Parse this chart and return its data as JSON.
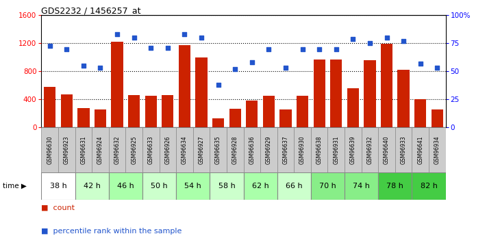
{
  "title": "GDS2232 / 1456257_at",
  "categories": [
    "GSM96630",
    "GSM96923",
    "GSM96631",
    "GSM96924",
    "GSM96632",
    "GSM96925",
    "GSM96633",
    "GSM96926",
    "GSM96634",
    "GSM96927",
    "GSM96635",
    "GSM96928",
    "GSM96636",
    "GSM96929",
    "GSM96637",
    "GSM96930",
    "GSM96638",
    "GSM96931",
    "GSM96639",
    "GSM96932",
    "GSM96640",
    "GSM96933",
    "GSM96641",
    "GSM96934"
  ],
  "bar_values": [
    580,
    470,
    280,
    260,
    1220,
    460,
    450,
    460,
    1170,
    1000,
    130,
    270,
    380,
    450,
    260,
    450,
    970,
    970,
    560,
    960,
    1190,
    820,
    400,
    255
  ],
  "scatter_values": [
    73,
    70,
    55,
    53,
    83,
    80,
    71,
    71,
    83,
    80,
    38,
    52,
    58,
    70,
    53,
    70,
    70,
    70,
    79,
    75,
    80,
    77,
    57,
    53
  ],
  "time_groups": [
    {
      "label": "38 h",
      "start": 0,
      "end": 2,
      "color": "#ffffff"
    },
    {
      "label": "42 h",
      "start": 2,
      "end": 4,
      "color": "#ccffcc"
    },
    {
      "label": "46 h",
      "start": 4,
      "end": 6,
      "color": "#aaffaa"
    },
    {
      "label": "50 h",
      "start": 6,
      "end": 8,
      "color": "#ccffcc"
    },
    {
      "label": "54 h",
      "start": 8,
      "end": 10,
      "color": "#aaffaa"
    },
    {
      "label": "58 h",
      "start": 10,
      "end": 12,
      "color": "#ccffcc"
    },
    {
      "label": "62 h",
      "start": 12,
      "end": 14,
      "color": "#aaffaa"
    },
    {
      "label": "66 h",
      "start": 14,
      "end": 16,
      "color": "#ccffcc"
    },
    {
      "label": "70 h",
      "start": 16,
      "end": 18,
      "color": "#88ee88"
    },
    {
      "label": "74 h",
      "start": 18,
      "end": 20,
      "color": "#88ee88"
    },
    {
      "label": "78 h",
      "start": 20,
      "end": 22,
      "color": "#44cc44"
    },
    {
      "label": "82 h",
      "start": 22,
      "end": 24,
      "color": "#44cc44"
    }
  ],
  "bar_color": "#cc2200",
  "scatter_color": "#2255cc",
  "ylim_left": [
    0,
    1600
  ],
  "ylim_right": [
    0,
    100
  ],
  "yticks_left": [
    0,
    400,
    800,
    1200,
    1600
  ],
  "ytick_labels_right": [
    "0",
    "25",
    "50",
    "75",
    "100%"
  ],
  "yticks_right": [
    0,
    25,
    50,
    75,
    100
  ],
  "plot_bg_color": "#ffffff",
  "grid_color": "#000000",
  "label_bg_color": "#cccccc"
}
